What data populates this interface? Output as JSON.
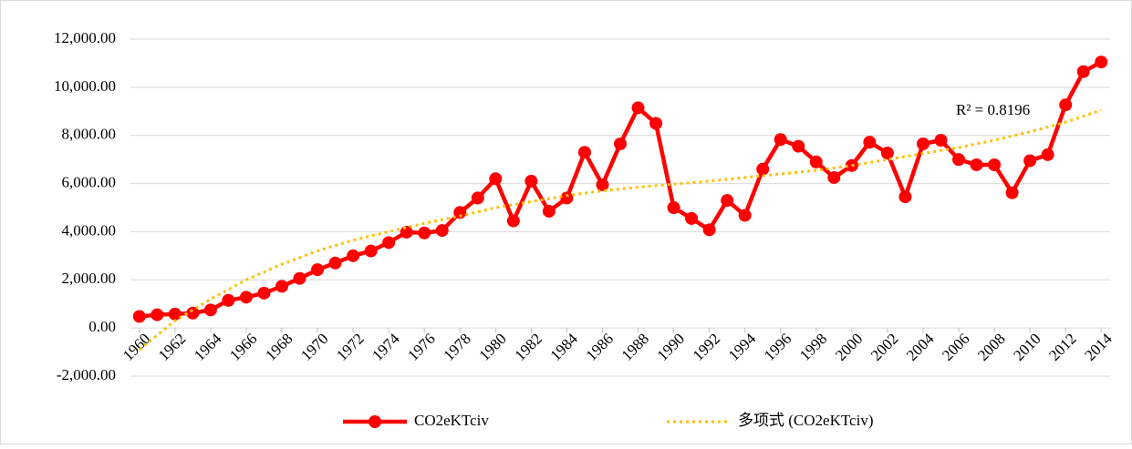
{
  "chart_data": {
    "type": "line",
    "x": [
      1960,
      1961,
      1962,
      1963,
      1964,
      1965,
      1966,
      1967,
      1968,
      1969,
      1970,
      1971,
      1972,
      1973,
      1974,
      1975,
      1976,
      1977,
      1978,
      1979,
      1980,
      1981,
      1982,
      1983,
      1984,
      1985,
      1986,
      1987,
      1988,
      1989,
      1990,
      1991,
      1992,
      1993,
      1994,
      1995,
      1996,
      1997,
      1998,
      1999,
      2000,
      2001,
      2002,
      2003,
      2004,
      2005,
      2006,
      2007,
      2008,
      2009,
      2010,
      2011,
      2012,
      2013,
      2014
    ],
    "xlim": [
      1959.5,
      2014.5
    ],
    "xticks": [
      1960,
      1962,
      1964,
      1966,
      1968,
      1970,
      1972,
      1974,
      1976,
      1978,
      1980,
      1982,
      1984,
      1986,
      1988,
      1990,
      1992,
      1994,
      1996,
      1998,
      2000,
      2002,
      2004,
      2006,
      2008,
      2010,
      2012,
      2014
    ],
    "ylim": [
      -2000,
      12000
    ],
    "yticks": [
      {
        "value": -2000,
        "label": "-2,000.00"
      },
      {
        "value": 0,
        "label": "0.00"
      },
      {
        "value": 2000,
        "label": "2,000.00"
      },
      {
        "value": 4000,
        "label": "4,000.00"
      },
      {
        "value": 6000,
        "label": "6,000.00"
      },
      {
        "value": 8000,
        "label": "8,000.00"
      },
      {
        "value": 10000,
        "label": "10,000.00"
      },
      {
        "value": 12000,
        "label": "12,000.00"
      }
    ],
    "grid": true,
    "annotation": "R² = 0.8196",
    "series": [
      {
        "name": "CO2eKTciv",
        "color": "#ff0000",
        "values": [
          480,
          550,
          580,
          620,
          750,
          1150,
          1280,
          1450,
          1730,
          2060,
          2420,
          2700,
          3000,
          3200,
          3550,
          3980,
          3950,
          4050,
          4800,
          5400,
          6200,
          4450,
          6100,
          4850,
          5400,
          7300,
          5950,
          7650,
          9150,
          8500,
          5000,
          4550,
          4080,
          5300,
          4680,
          6600,
          7830,
          7550,
          6900,
          6250,
          6750,
          7720,
          7270,
          5450,
          7650,
          7800,
          7000,
          6780,
          6780,
          5620,
          6950,
          7200,
          9270,
          10650,
          11050
        ]
      },
      {
        "name": "多项式 (CO2eKTciv)",
        "color": "#ffc000",
        "dotted": true,
        "x": [
          1960,
          1962,
          1964,
          1966,
          1968,
          1970,
          1972,
          1974,
          1976,
          1978,
          1980,
          1982,
          1984,
          1986,
          1988,
          1990,
          1992,
          1994,
          1996,
          1998,
          2000,
          2002,
          2004,
          2006,
          2008,
          2010,
          2012,
          2014
        ],
        "values": [
          -900,
          300,
          1200,
          2000,
          2650,
          3200,
          3650,
          4000,
          4350,
          4650,
          5000,
          5250,
          5500,
          5700,
          5850,
          5980,
          6100,
          6250,
          6400,
          6550,
          6750,
          7000,
          7250,
          7500,
          7800,
          8150,
          8550,
          9050
        ]
      }
    ]
  }
}
